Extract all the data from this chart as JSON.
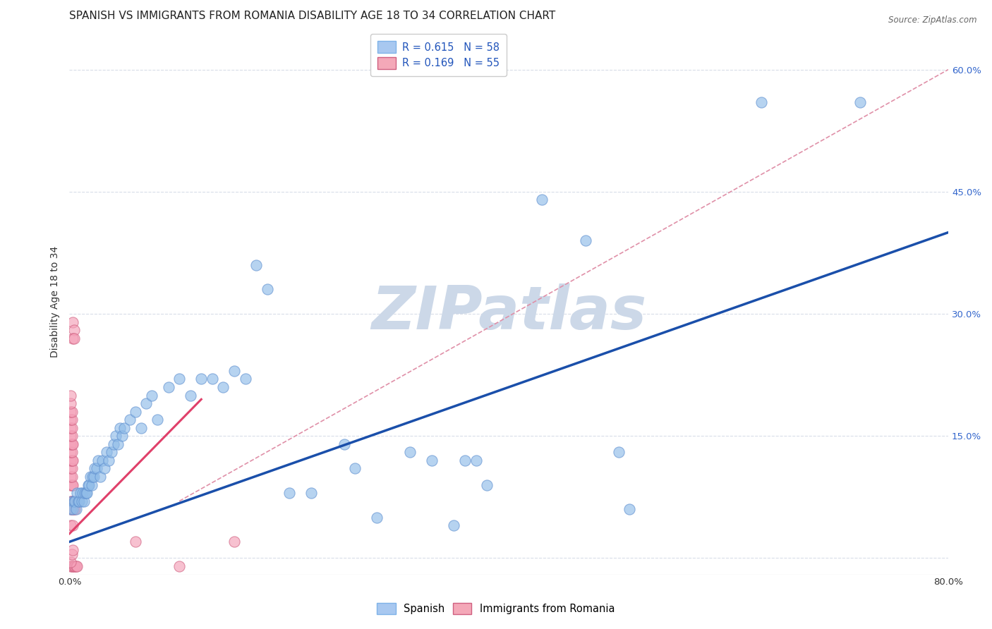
{
  "title": "SPANISH VS IMMIGRANTS FROM ROMANIA DISABILITY AGE 18 TO 34 CORRELATION CHART",
  "source": "Source: ZipAtlas.com",
  "ylabel": "Disability Age 18 to 34",
  "xlim": [
    0.0,
    0.8
  ],
  "ylim": [
    -0.02,
    0.65
  ],
  "xticks": [
    0.0,
    0.1,
    0.2,
    0.3,
    0.4,
    0.5,
    0.6,
    0.7,
    0.8
  ],
  "yticks": [
    0.0,
    0.15,
    0.3,
    0.45,
    0.6
  ],
  "ytick_labels_right": [
    "",
    "15.0%",
    "30.0%",
    "45.0%",
    "60.0%"
  ],
  "xtick_labels": [
    "0.0%",
    "",
    "",
    "",
    "",
    "",
    "",
    "",
    "80.0%"
  ],
  "spanish_scatter": [
    [
      0.001,
      0.06
    ],
    [
      0.002,
      0.07
    ],
    [
      0.003,
      0.06
    ],
    [
      0.004,
      0.07
    ],
    [
      0.005,
      0.07
    ],
    [
      0.006,
      0.06
    ],
    [
      0.007,
      0.08
    ],
    [
      0.008,
      0.07
    ],
    [
      0.009,
      0.07
    ],
    [
      0.01,
      0.08
    ],
    [
      0.011,
      0.07
    ],
    [
      0.012,
      0.08
    ],
    [
      0.013,
      0.07
    ],
    [
      0.014,
      0.08
    ],
    [
      0.015,
      0.08
    ],
    [
      0.016,
      0.08
    ],
    [
      0.017,
      0.09
    ],
    [
      0.018,
      0.09
    ],
    [
      0.019,
      0.1
    ],
    [
      0.02,
      0.09
    ],
    [
      0.021,
      0.1
    ],
    [
      0.022,
      0.1
    ],
    [
      0.023,
      0.11
    ],
    [
      0.025,
      0.11
    ],
    [
      0.026,
      0.12
    ],
    [
      0.028,
      0.1
    ],
    [
      0.03,
      0.12
    ],
    [
      0.032,
      0.11
    ],
    [
      0.034,
      0.13
    ],
    [
      0.036,
      0.12
    ],
    [
      0.038,
      0.13
    ],
    [
      0.04,
      0.14
    ],
    [
      0.042,
      0.15
    ],
    [
      0.044,
      0.14
    ],
    [
      0.046,
      0.16
    ],
    [
      0.048,
      0.15
    ],
    [
      0.05,
      0.16
    ],
    [
      0.055,
      0.17
    ],
    [
      0.06,
      0.18
    ],
    [
      0.065,
      0.16
    ],
    [
      0.07,
      0.19
    ],
    [
      0.075,
      0.2
    ],
    [
      0.08,
      0.17
    ],
    [
      0.09,
      0.21
    ],
    [
      0.1,
      0.22
    ],
    [
      0.11,
      0.2
    ],
    [
      0.12,
      0.22
    ],
    [
      0.13,
      0.22
    ],
    [
      0.14,
      0.21
    ],
    [
      0.15,
      0.23
    ],
    [
      0.16,
      0.22
    ],
    [
      0.17,
      0.36
    ],
    [
      0.18,
      0.33
    ],
    [
      0.2,
      0.08
    ],
    [
      0.22,
      0.08
    ],
    [
      0.25,
      0.14
    ],
    [
      0.26,
      0.11
    ],
    [
      0.31,
      0.13
    ],
    [
      0.33,
      0.12
    ],
    [
      0.36,
      0.12
    ],
    [
      0.37,
      0.12
    ],
    [
      0.28,
      0.05
    ],
    [
      0.35,
      0.04
    ],
    [
      0.38,
      0.09
    ],
    [
      0.43,
      0.44
    ],
    [
      0.47,
      0.39
    ],
    [
      0.5,
      0.13
    ],
    [
      0.51,
      0.06
    ],
    [
      0.63,
      0.56
    ],
    [
      0.72,
      0.56
    ]
  ],
  "romanian_scatter": [
    [
      0.001,
      0.06
    ],
    [
      0.002,
      0.06
    ],
    [
      0.003,
      0.06
    ],
    [
      0.004,
      0.06
    ],
    [
      0.005,
      0.06
    ],
    [
      0.001,
      0.07
    ],
    [
      0.002,
      0.07
    ],
    [
      0.003,
      0.07
    ],
    [
      0.004,
      0.07
    ],
    [
      0.001,
      0.09
    ],
    [
      0.002,
      0.09
    ],
    [
      0.003,
      0.09
    ],
    [
      0.001,
      0.1
    ],
    [
      0.002,
      0.1
    ],
    [
      0.001,
      0.11
    ],
    [
      0.002,
      0.11
    ],
    [
      0.001,
      0.12
    ],
    [
      0.002,
      0.12
    ],
    [
      0.003,
      0.12
    ],
    [
      0.001,
      0.13
    ],
    [
      0.002,
      0.13
    ],
    [
      0.001,
      0.14
    ],
    [
      0.002,
      0.14
    ],
    [
      0.003,
      0.14
    ],
    [
      0.001,
      0.15
    ],
    [
      0.002,
      0.15
    ],
    [
      0.001,
      0.16
    ],
    [
      0.002,
      0.16
    ],
    [
      0.001,
      0.17
    ],
    [
      0.002,
      0.17
    ],
    [
      0.001,
      0.18
    ],
    [
      0.002,
      0.18
    ],
    [
      0.001,
      0.19
    ],
    [
      0.001,
      0.2
    ],
    [
      0.003,
      0.29
    ],
    [
      0.004,
      0.28
    ],
    [
      0.003,
      0.27
    ],
    [
      0.004,
      0.27
    ],
    [
      0.06,
      0.02
    ],
    [
      0.15,
      0.02
    ],
    [
      0.001,
      0.04
    ],
    [
      0.003,
      0.04
    ],
    [
      0.001,
      -0.01
    ],
    [
      0.002,
      -0.01
    ],
    [
      0.003,
      -0.01
    ],
    [
      0.004,
      -0.01
    ],
    [
      0.005,
      -0.01
    ],
    [
      0.006,
      -0.01
    ],
    [
      0.007,
      -0.01
    ],
    [
      0.001,
      -0.005
    ],
    [
      0.002,
      0.005
    ],
    [
      0.003,
      0.01
    ],
    [
      0.1,
      -0.01
    ]
  ],
  "spanish_line_x": [
    0.0,
    0.8
  ],
  "spanish_line_y": [
    0.02,
    0.4
  ],
  "romanian_line_x": [
    0.0,
    0.12
  ],
  "romanian_line_y": [
    0.03,
    0.195
  ],
  "dashed_line_x": [
    0.1,
    0.8
  ],
  "dashed_line_y": [
    0.07,
    0.6
  ],
  "scatter_blue": "#90bce8",
  "scatter_blue_edge": "#6090d0",
  "scatter_pink": "#f4a0b8",
  "scatter_pink_edge": "#d06080",
  "scatter_size": 120,
  "scatter_alpha": 0.65,
  "bg_color": "#ffffff",
  "grid_color": "#d8dde8",
  "watermark": "ZIPatlas",
  "watermark_color": "#ccd8e8",
  "title_fontsize": 11,
  "axis_label_fontsize": 10,
  "tick_fontsize": 9.5,
  "legend_fontsize": 10.5
}
